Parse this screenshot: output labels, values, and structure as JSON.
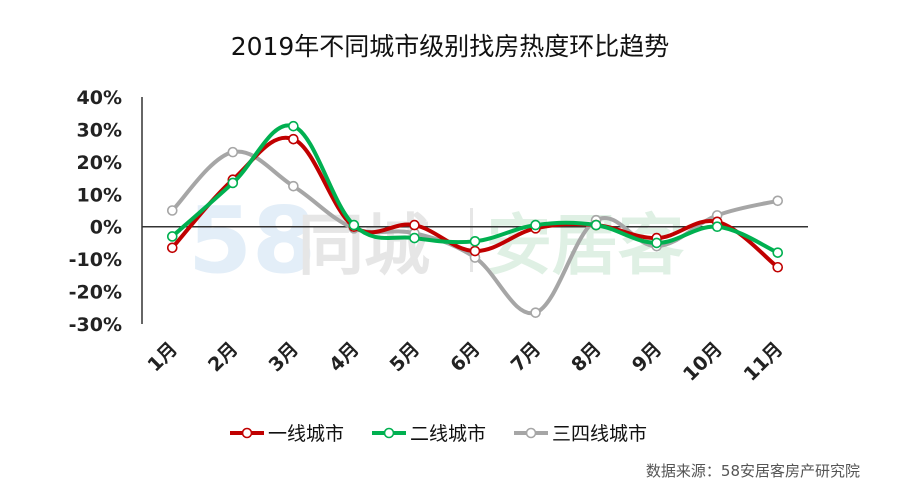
{
  "chart_data": {
    "type": "line",
    "title": "2019年不同城市级别找房热度环比趋势",
    "categories": [
      "1月",
      "2月",
      "3月",
      "4月",
      "5月",
      "6月",
      "7月",
      "8月",
      "9月",
      "10月",
      "11月"
    ],
    "ylim": [
      -30,
      40
    ],
    "yticks": [
      -30,
      -20,
      -10,
      0,
      10,
      20,
      30,
      40
    ],
    "ytick_labels": [
      "-30%",
      "-20%",
      "-10%",
      "0%",
      "10%",
      "20%",
      "30%",
      "40%"
    ],
    "legend_position": "bottom",
    "grid": false,
    "series": [
      {
        "name": "一线城市",
        "color": "#c00000",
        "values": [
          -6.5,
          14.5,
          27,
          0,
          0.5,
          -7.5,
          -0.5,
          0.5,
          -3.5,
          1.5,
          -12.5
        ]
      },
      {
        "name": "二线城市",
        "color": "#00b050",
        "values": [
          -3,
          13.5,
          31,
          0.5,
          -3.5,
          -4.5,
          0.5,
          0.5,
          -5,
          0,
          -8
        ]
      },
      {
        "name": "三四线城市",
        "color": "#a6a6a6",
        "values": [
          5,
          23,
          12.5,
          -0.5,
          -2,
          -9.5,
          -26.5,
          2,
          -6,
          3.5,
          8
        ]
      }
    ]
  },
  "watermark": {
    "num": "58",
    "brand": "同城",
    "brand2": "安居客"
  },
  "source": "数据来源：58安居客房产研究院"
}
